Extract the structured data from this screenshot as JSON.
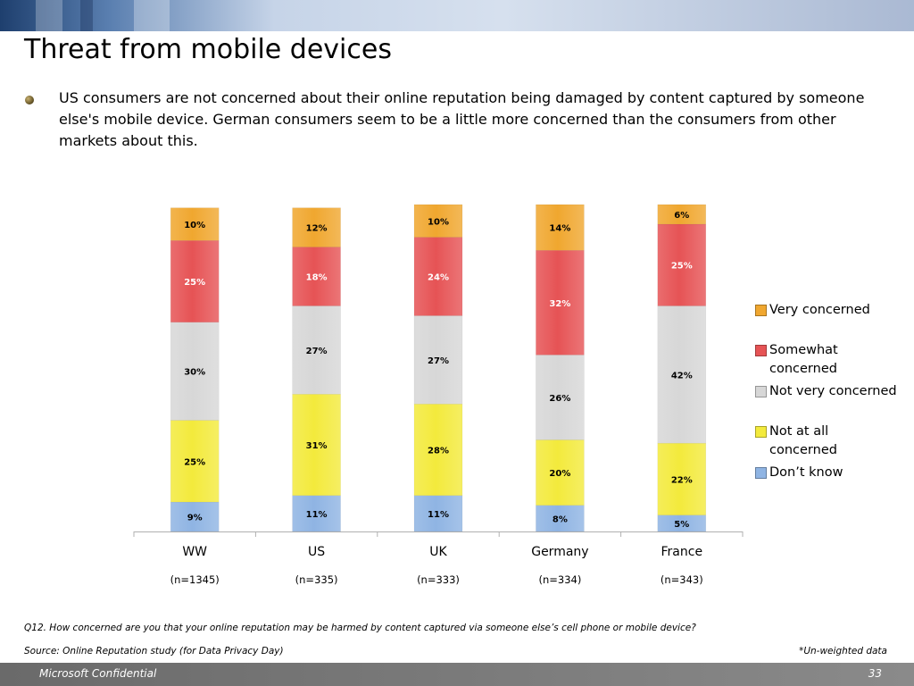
{
  "slide": {
    "title": "Threat from mobile devices",
    "bullet": "US consumers are not concerned about their online reputation being damaged by content captured by someone else's mobile device. German consumers seem to be a little more concerned than the consumers from other markets about this.",
    "question": "Q12. How concerned are you that your online reputation may be harmed by content captured via someone else’s cell phone or mobile device?",
    "source": "Source: Online Reputation study (for Data Privacy Day)",
    "weighting_note": "*Un-weighted data",
    "footer_left": "Microsoft Confidential",
    "page_number": "33"
  },
  "chart_data": {
    "type": "bar",
    "stacked": true,
    "percent": true,
    "categories": [
      "WW",
      "US",
      "UK",
      "Germany",
      "France"
    ],
    "sample_sizes": [
      "(n=1345)",
      "(n=335)",
      "(n=333)",
      "(n=334)",
      "(n=343)"
    ],
    "series": [
      {
        "name": "Don’t know",
        "values": [
          9,
          11,
          11,
          8,
          5
        ],
        "color": "#8fb4e3"
      },
      {
        "name": "Not at all concerned",
        "values": [
          25,
          31,
          28,
          20,
          22
        ],
        "color": "#f3ea3c"
      },
      {
        "name": "Not very concerned",
        "values": [
          30,
          27,
          27,
          26,
          42
        ],
        "color": "#d7d7d7"
      },
      {
        "name": "Somewhat concerned",
        "values": [
          25,
          18,
          24,
          32,
          25
        ],
        "color": "#e65355"
      },
      {
        "name": "Very concerned",
        "values": [
          10,
          12,
          10,
          14,
          6
        ],
        "color": "#f0a72f"
      }
    ],
    "legend": {
      "position": "right",
      "items": [
        "Very concerned",
        "Somewhat concerned",
        "Not very concerned",
        "Not at all concerned",
        "Don’t know"
      ],
      "lines": [
        [
          "Very concerned"
        ],
        [
          "Somewhat",
          "concerned"
        ],
        [
          "Not very concerned"
        ],
        [
          "Not at all",
          "concerned"
        ],
        [
          "Don’t know"
        ]
      ]
    },
    "ylim": [
      0,
      100
    ],
    "grid": false
  }
}
